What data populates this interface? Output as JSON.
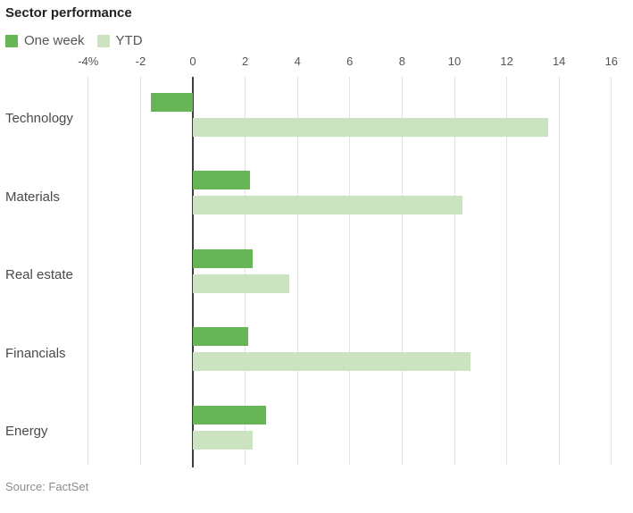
{
  "title": "Sector performance",
  "legend": [
    {
      "label": "One week",
      "color": "#67b556"
    },
    {
      "label": "YTD",
      "color": "#cce3c1"
    }
  ],
  "source": "Source: FactSet",
  "colors": {
    "one_week_green": "#67b556",
    "ytd_light_green": "#cce3c1",
    "gridline": "#e3e3e3",
    "zero_line": "#3d3d3d",
    "title_text": "#222222",
    "axis_text": "#555555",
    "category_text": "#4a4a4a",
    "source_text": "#8c8c8c"
  },
  "chart_data": {
    "type": "bar",
    "orientation": "horizontal",
    "title": "Sector performance",
    "categories": [
      "Technology",
      "Materials",
      "Real estate",
      "Financials",
      "Energy"
    ],
    "series": [
      {
        "name": "One week",
        "color": "#67b556",
        "values": [
          -1.6,
          2.2,
          2.3,
          2.1,
          2.8
        ]
      },
      {
        "name": "YTD",
        "color": "#cce3c1",
        "values": [
          13.6,
          10.3,
          3.7,
          10.6,
          2.3
        ]
      }
    ],
    "xlim": [
      -4,
      16
    ],
    "xticks": [
      -4,
      -2,
      0,
      2,
      4,
      6,
      8,
      10,
      12,
      14,
      16
    ],
    "xtick_labels": [
      "-4%",
      "-2",
      "0",
      "2",
      "4",
      "6",
      "8",
      "10",
      "12",
      "14",
      "16"
    ],
    "unit": "%",
    "grid": true,
    "legend_position": "top-left",
    "xlabel": "",
    "ylabel": ""
  }
}
